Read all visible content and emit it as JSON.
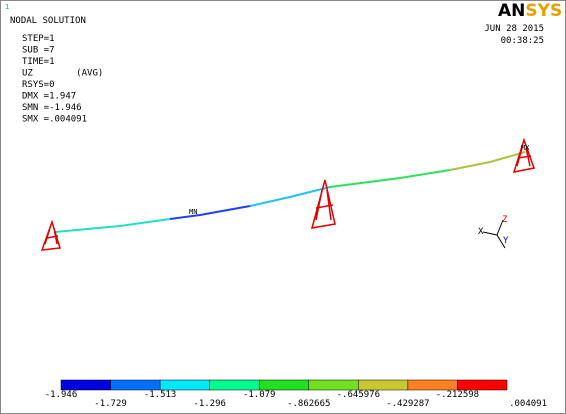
{
  "header": {
    "marker": "1",
    "title": "NODAL SOLUTION",
    "lines": [
      "STEP=1",
      "SUB =7",
      "TIME=1",
      "UZ        (AVG)",
      "RSYS=0",
      "DMX =1.947",
      "SMN =-1.946",
      "SMX =.004091"
    ]
  },
  "logo": {
    "part1": "AN",
    "part2": "SYS"
  },
  "date": "JUN 28 2015",
  "time": "00:38:25",
  "model": {
    "min_label": "MN",
    "max_label": "MX"
  },
  "triad": {
    "x": "X",
    "y": "Y",
    "z": "Z"
  },
  "legend": {
    "colors": [
      "#0000e0",
      "#0070ff",
      "#00e8ff",
      "#00ff90",
      "#20e020",
      "#70e020",
      "#c8c830",
      "#ff8020",
      "#ff0000"
    ],
    "labels": [
      "-1.946",
      "-1.729",
      "-1.513",
      "-1.296",
      "-1.079",
      "-.862665",
      "-.645976",
      "-.429287",
      "-.212598",
      ".004091"
    ]
  }
}
